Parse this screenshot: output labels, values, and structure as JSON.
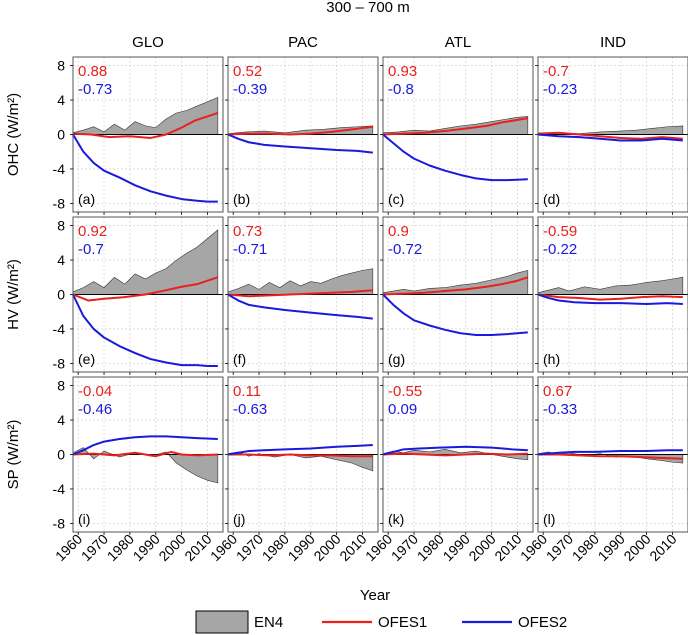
{
  "figure": {
    "title": "300 – 700 m",
    "xlabel": "Year",
    "columns": [
      "GLO",
      "PAC",
      "ATL",
      "IND"
    ],
    "row_labels": [
      "OHC (W/m²)",
      "HV (W/m²)",
      "SP (W/m²)"
    ],
    "legend": [
      {
        "name": "EN4",
        "color": "#a6a6a6",
        "style": "area"
      },
      {
        "name": "OFES1",
        "color": "#e8201f",
        "style": "line"
      },
      {
        "name": "OFES2",
        "color": "#1a1adc",
        "style": "line"
      }
    ]
  },
  "chart_data": {
    "type": "line",
    "x_range": [
      1958,
      2016
    ],
    "x_ticks": [
      1960,
      1970,
      1980,
      1990,
      2000,
      2010
    ],
    "y_range": [
      -9,
      9
    ],
    "y_ticks": [
      -8,
      -4,
      0,
      4,
      8
    ],
    "grid": true,
    "legend_placement": "bottom",
    "panels": [
      {
        "letter": "(a)",
        "row": 0,
        "col": 0,
        "r_ofes1": "0.88",
        "r_ofes2": "-0.73",
        "en4": {
          "x": [
            1958,
            1962,
            1966,
            1970,
            1974,
            1978,
            1982,
            1986,
            1990,
            1994,
            1998,
            2002,
            2006,
            2010,
            2014
          ],
          "y": [
            0.2,
            0.5,
            0.9,
            0.3,
            1.2,
            0.5,
            1.5,
            1.0,
            0.8,
            1.8,
            2.5,
            2.8,
            3.3,
            3.8,
            4.3
          ]
        },
        "ofes1": {
          "x": [
            1958,
            1965,
            1972,
            1980,
            1988,
            1994,
            2000,
            2005,
            2010,
            2014
          ],
          "y": [
            0.1,
            0.0,
            -0.3,
            -0.2,
            -0.4,
            0.0,
            0.8,
            1.6,
            2.1,
            2.5
          ]
        },
        "ofes2": {
          "x": [
            1958,
            1962,
            1966,
            1970,
            1976,
            1982,
            1988,
            1994,
            2000,
            2006,
            2010,
            2014
          ],
          "y": [
            0.0,
            -2.0,
            -3.3,
            -4.2,
            -5.0,
            -5.9,
            -6.6,
            -7.1,
            -7.5,
            -7.7,
            -7.8,
            -7.8
          ]
        }
      },
      {
        "letter": "(b)",
        "row": 0,
        "col": 1,
        "r_ofes1": "0.52",
        "r_ofes2": "-0.39",
        "en4": {
          "x": [
            1958,
            1965,
            1972,
            1980,
            1988,
            1995,
            2002,
            2008,
            2014
          ],
          "y": [
            0.1,
            0.3,
            0.4,
            0.2,
            0.5,
            0.6,
            0.8,
            0.9,
            1.0
          ]
        },
        "ofes1": {
          "x": [
            1958,
            1966,
            1974,
            1982,
            1990,
            1998,
            2006,
            2014
          ],
          "y": [
            0.0,
            0.1,
            0.1,
            0.0,
            0.1,
            0.3,
            0.6,
            0.9
          ]
        },
        "ofes2": {
          "x": [
            1958,
            1962,
            1966,
            1972,
            1980,
            1990,
            2000,
            2008,
            2014
          ],
          "y": [
            0.0,
            -0.5,
            -0.9,
            -1.2,
            -1.4,
            -1.6,
            -1.8,
            -1.9,
            -2.1
          ]
        }
      },
      {
        "letter": "(c)",
        "row": 0,
        "col": 2,
        "r_ofes1": "0.93",
        "r_ofes2": "-0.8",
        "en4": {
          "x": [
            1958,
            1964,
            1970,
            1976,
            1982,
            1988,
            1994,
            2000,
            2006,
            2010,
            2014
          ],
          "y": [
            0.2,
            0.3,
            0.5,
            0.4,
            0.7,
            1.0,
            1.2,
            1.5,
            1.8,
            2.0,
            2.1
          ]
        },
        "ofes1": {
          "x": [
            1958,
            1966,
            1974,
            1982,
            1990,
            1998,
            2004,
            2010,
            2014
          ],
          "y": [
            0.0,
            0.1,
            0.2,
            0.4,
            0.7,
            1.0,
            1.4,
            1.7,
            1.9
          ]
        },
        "ofes2": {
          "x": [
            1958,
            1962,
            1966,
            1970,
            1976,
            1982,
            1988,
            1994,
            2000,
            2006,
            2014
          ],
          "y": [
            0.0,
            -1.0,
            -2.0,
            -2.8,
            -3.6,
            -4.2,
            -4.7,
            -5.1,
            -5.3,
            -5.3,
            -5.2
          ]
        }
      },
      {
        "letter": "(d)",
        "row": 0,
        "col": 3,
        "r_ofes1": "-0.7",
        "r_ofes2": "-0.23",
        "en4": {
          "x": [
            1958,
            1966,
            1974,
            1982,
            1990,
            1996,
            2002,
            2008,
            2014
          ],
          "y": [
            0.1,
            0.2,
            0.1,
            0.3,
            0.4,
            0.5,
            0.7,
            0.9,
            1.0
          ]
        },
        "ofes1": {
          "x": [
            1958,
            1966,
            1974,
            1982,
            1990,
            1998,
            2006,
            2014
          ],
          "y": [
            0.1,
            0.2,
            0.0,
            -0.2,
            -0.4,
            -0.5,
            -0.3,
            -0.5
          ]
        },
        "ofes2": {
          "x": [
            1958,
            1966,
            1974,
            1982,
            1990,
            1998,
            2006,
            2014
          ],
          "y": [
            0.0,
            -0.2,
            -0.3,
            -0.5,
            -0.7,
            -0.7,
            -0.5,
            -0.7
          ]
        }
      },
      {
        "letter": "(e)",
        "row": 1,
        "col": 0,
        "r_ofes1": "0.92",
        "r_ofes2": "-0.7",
        "en4": {
          "x": [
            1958,
            1962,
            1966,
            1970,
            1974,
            1978,
            1982,
            1986,
            1990,
            1994,
            1998,
            2002,
            2006,
            2010,
            2014
          ],
          "y": [
            0.3,
            0.8,
            1.5,
            0.8,
            2.0,
            1.2,
            2.4,
            1.8,
            2.5,
            3.0,
            4.0,
            4.8,
            5.5,
            6.5,
            7.5
          ]
        },
        "ofes1": {
          "x": [
            1958,
            1964,
            1970,
            1978,
            1986,
            1994,
            2000,
            2006,
            2010,
            2014
          ],
          "y": [
            0.0,
            -0.7,
            -0.5,
            -0.3,
            0.0,
            0.5,
            0.9,
            1.2,
            1.6,
            2.0
          ]
        },
        "ofes2": {
          "x": [
            1958,
            1962,
            1966,
            1970,
            1976,
            1982,
            1988,
            1994,
            2000,
            2006,
            2010,
            2014
          ],
          "y": [
            0.0,
            -2.5,
            -4.0,
            -5.0,
            -6.0,
            -6.8,
            -7.5,
            -7.9,
            -8.2,
            -8.2,
            -8.3,
            -8.3
          ]
        }
      },
      {
        "letter": "(f)",
        "row": 1,
        "col": 1,
        "r_ofes1": "0.73",
        "r_ofes2": "-0.71",
        "en4": {
          "x": [
            1958,
            1962,
            1966,
            1970,
            1974,
            1978,
            1982,
            1986,
            1990,
            1994,
            1998,
            2002,
            2006,
            2010,
            2014
          ],
          "y": [
            0.3,
            0.7,
            1.2,
            0.6,
            1.4,
            0.8,
            1.6,
            1.0,
            1.5,
            1.3,
            1.8,
            2.2,
            2.5,
            2.8,
            3.0
          ]
        },
        "ofes1": {
          "x": [
            1958,
            1966,
            1974,
            1982,
            1990,
            1998,
            2006,
            2014
          ],
          "y": [
            0.0,
            -0.2,
            -0.1,
            0.0,
            0.1,
            0.2,
            0.3,
            0.5
          ]
        },
        "ofes2": {
          "x": [
            1958,
            1962,
            1966,
            1972,
            1980,
            1990,
            2000,
            2008,
            2014
          ],
          "y": [
            0.0,
            -0.7,
            -1.2,
            -1.5,
            -1.8,
            -2.1,
            -2.4,
            -2.6,
            -2.8
          ]
        }
      },
      {
        "letter": "(g)",
        "row": 1,
        "col": 2,
        "r_ofes1": "0.9",
        "r_ofes2": "-0.72",
        "en4": {
          "x": [
            1958,
            1962,
            1966,
            1970,
            1976,
            1982,
            1988,
            1994,
            2000,
            2006,
            2010,
            2014
          ],
          "y": [
            0.2,
            0.4,
            0.6,
            0.4,
            0.7,
            0.8,
            1.1,
            1.3,
            1.7,
            2.1,
            2.5,
            2.8
          ]
        },
        "ofes1": {
          "x": [
            1958,
            1966,
            1974,
            1982,
            1990,
            1998,
            2004,
            2010,
            2014
          ],
          "y": [
            0.0,
            0.1,
            0.2,
            0.4,
            0.6,
            0.9,
            1.2,
            1.6,
            2.0
          ]
        },
        "ofes2": {
          "x": [
            1958,
            1962,
            1966,
            1970,
            1976,
            1982,
            1988,
            1994,
            2000,
            2006,
            2014
          ],
          "y": [
            0.0,
            -1.2,
            -2.2,
            -3.0,
            -3.6,
            -4.1,
            -4.5,
            -4.7,
            -4.7,
            -4.6,
            -4.4
          ]
        }
      },
      {
        "letter": "(h)",
        "row": 1,
        "col": 3,
        "r_ofes1": "-0.59",
        "r_ofes2": "-0.22",
        "en4": {
          "x": [
            1958,
            1962,
            1966,
            1970,
            1976,
            1982,
            1988,
            1994,
            2000,
            2006,
            2010,
            2014
          ],
          "y": [
            0.2,
            0.5,
            0.8,
            0.4,
            0.9,
            0.6,
            1.0,
            1.1,
            1.4,
            1.6,
            1.8,
            2.0
          ]
        },
        "ofes1": {
          "x": [
            1958,
            1966,
            1974,
            1982,
            1990,
            1998,
            2006,
            2014
          ],
          "y": [
            0.0,
            -0.3,
            -0.4,
            -0.6,
            -0.5,
            -0.3,
            -0.2,
            -0.3
          ]
        },
        "ofes2": {
          "x": [
            1958,
            1962,
            1966,
            1972,
            1980,
            1990,
            2000,
            2008,
            2014
          ],
          "y": [
            0.0,
            -0.4,
            -0.7,
            -0.9,
            -1.0,
            -1.0,
            -1.1,
            -1.0,
            -1.1
          ]
        }
      },
      {
        "letter": "(i)",
        "row": 2,
        "col": 0,
        "r_ofes1": "-0.04",
        "r_ofes2": "-0.46",
        "en4": {
          "x": [
            1958,
            1962,
            1966,
            1970,
            1976,
            1982,
            1988,
            1994,
            1998,
            2002,
            2006,
            2010,
            2014
          ],
          "y": [
            0.2,
            0.8,
            -0.5,
            0.4,
            -0.3,
            0.2,
            -0.2,
            0.3,
            -1.0,
            -1.8,
            -2.5,
            -3.0,
            -3.3
          ]
        },
        "ofes1": {
          "x": [
            1958,
            1966,
            1974,
            1982,
            1990,
            1996,
            2000,
            2006,
            2014
          ],
          "y": [
            0.0,
            0.1,
            -0.1,
            0.2,
            -0.2,
            0.3,
            0.0,
            -0.1,
            0.0
          ]
        },
        "ofes2": {
          "x": [
            1958,
            1962,
            1966,
            1970,
            1976,
            1982,
            1988,
            1994,
            2000,
            2006,
            2014
          ],
          "y": [
            0.0,
            0.5,
            1.1,
            1.5,
            1.8,
            2.0,
            2.1,
            2.1,
            2.0,
            1.9,
            1.8
          ]
        }
      },
      {
        "letter": "(j)",
        "row": 2,
        "col": 1,
        "r_ofes1": "0.11",
        "r_ofes2": "-0.63",
        "en4": {
          "x": [
            1958,
            1962,
            1966,
            1970,
            1976,
            1982,
            1988,
            1994,
            2000,
            2006,
            2010,
            2014
          ],
          "y": [
            0.1,
            0.3,
            -0.2,
            0.1,
            -0.3,
            0.0,
            -0.4,
            -0.2,
            -0.6,
            -1.0,
            -1.5,
            -1.9
          ]
        },
        "ofes1": {
          "x": [
            1958,
            1966,
            1974,
            1982,
            1990,
            1998,
            2006,
            2014
          ],
          "y": [
            0.0,
            0.0,
            -0.1,
            0.0,
            -0.1,
            -0.1,
            -0.2,
            -0.2
          ]
        },
        "ofes2": {
          "x": [
            1958,
            1962,
            1966,
            1972,
            1980,
            1990,
            2000,
            2008,
            2014
          ],
          "y": [
            0.0,
            0.2,
            0.4,
            0.5,
            0.6,
            0.7,
            0.9,
            1.0,
            1.1
          ]
        }
      },
      {
        "letter": "(k)",
        "row": 2,
        "col": 2,
        "r_ofes1": "-0.55",
        "r_ofes2": "0.09",
        "en4": {
          "x": [
            1958,
            1962,
            1966,
            1970,
            1976,
            1982,
            1988,
            1994,
            2000,
            2006,
            2010,
            2014
          ],
          "y": [
            0.1,
            0.4,
            0.2,
            0.5,
            0.3,
            0.6,
            0.2,
            0.4,
            0.0,
            -0.3,
            -0.5,
            -0.6
          ]
        },
        "ofes1": {
          "x": [
            1958,
            1966,
            1974,
            1982,
            1990,
            1998,
            2006,
            2014
          ],
          "y": [
            0.0,
            0.1,
            0.0,
            -0.1,
            0.0,
            0.1,
            0.0,
            0.1
          ]
        },
        "ofes2": {
          "x": [
            1958,
            1962,
            1966,
            1972,
            1980,
            1990,
            2000,
            2008,
            2014
          ],
          "y": [
            0.0,
            0.3,
            0.6,
            0.7,
            0.8,
            0.9,
            0.8,
            0.6,
            0.5
          ]
        }
      },
      {
        "letter": "(l)",
        "row": 2,
        "col": 3,
        "r_ofes1": "0.67",
        "r_ofes2": "-0.33",
        "en4": {
          "x": [
            1958,
            1962,
            1966,
            1970,
            1976,
            1982,
            1988,
            1994,
            2000,
            2006,
            2010,
            2014
          ],
          "y": [
            0.1,
            0.3,
            0.0,
            0.2,
            -0.1,
            0.1,
            -0.3,
            -0.2,
            -0.5,
            -0.7,
            -0.9,
            -1.0
          ]
        },
        "ofes1": {
          "x": [
            1958,
            1966,
            1974,
            1982,
            1990,
            1998,
            2006,
            2014
          ],
          "y": [
            0.0,
            0.0,
            -0.1,
            -0.2,
            -0.2,
            -0.3,
            -0.4,
            -0.5
          ]
        },
        "ofes2": {
          "x": [
            1958,
            1962,
            1966,
            1972,
            1980,
            1990,
            2000,
            2008,
            2014
          ],
          "y": [
            0.0,
            0.1,
            0.2,
            0.3,
            0.3,
            0.4,
            0.4,
            0.5,
            0.5
          ]
        }
      }
    ]
  }
}
